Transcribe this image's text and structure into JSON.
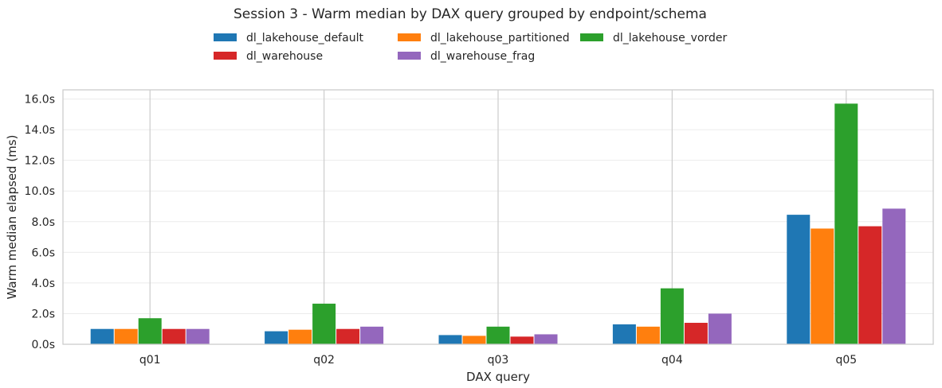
{
  "chart_data": {
    "type": "bar",
    "title": "Session 3 - Warm median by DAX query grouped by endpoint/schema",
    "xlabel": "DAX query",
    "ylabel": "Warm median elapsed (ms)",
    "categories": [
      "q01",
      "q02",
      "q03",
      "q04",
      "q05"
    ],
    "ylim": [
      0,
      16.6
    ],
    "yticks": [
      0,
      2,
      4,
      6,
      8,
      10,
      12,
      14,
      16
    ],
    "ytick_labels": [
      "0.0s",
      "2.0s",
      "4.0s",
      "6.0s",
      "8.0s",
      "10.0s",
      "12.0s",
      "14.0s",
      "16.0s"
    ],
    "grid": true,
    "legend_position": "top-center",
    "legend_columns": 3,
    "series": [
      {
        "name": "dl_lakehouse_default",
        "color": "#1f77b4",
        "values": [
          1.0,
          0.85,
          0.6,
          1.3,
          8.45
        ]
      },
      {
        "name": "dl_lakehouse_partitioned",
        "color": "#ff7f0e",
        "values": [
          1.0,
          0.95,
          0.55,
          1.15,
          7.55
        ]
      },
      {
        "name": "dl_lakehouse_vorder",
        "color": "#2ca02c",
        "values": [
          1.7,
          2.65,
          1.15,
          3.65,
          15.7
        ]
      },
      {
        "name": "dl_warehouse",
        "color": "#d62728",
        "values": [
          1.0,
          1.0,
          0.5,
          1.4,
          7.7
        ]
      },
      {
        "name": "dl_warehouse_frag",
        "color": "#9467bd",
        "values": [
          1.0,
          1.15,
          0.65,
          2.0,
          8.85
        ]
      }
    ],
    "legend_order": [
      "dl_lakehouse_default",
      "dl_lakehouse_partitioned",
      "dl_lakehouse_vorder",
      "dl_warehouse",
      "dl_warehouse_frag"
    ]
  }
}
